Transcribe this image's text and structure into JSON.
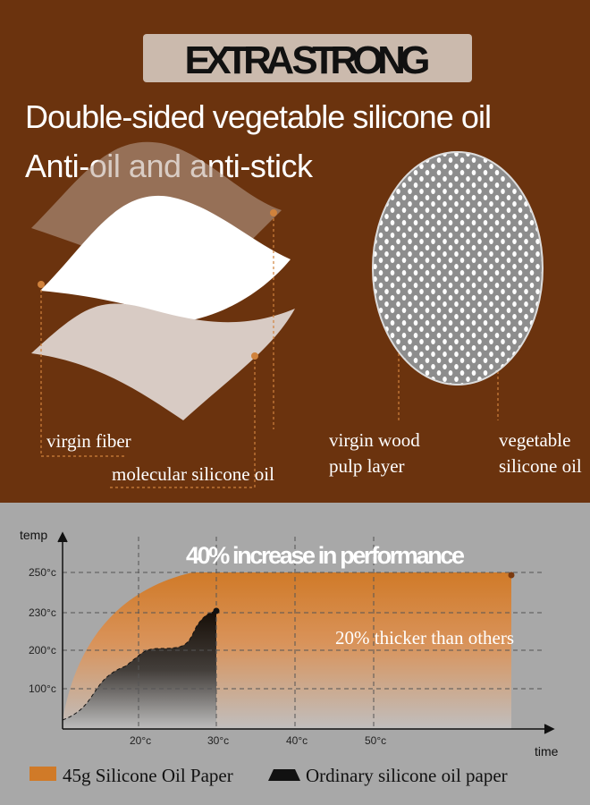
{
  "header": {
    "banner": "EXTRA STRONG",
    "lines": [
      "Double-sided vegetable silicone oil",
      "Anti-oil and anti-stick"
    ]
  },
  "layers": {
    "left_labels": [
      "virgin fiber",
      "molecular silicone oil"
    ],
    "center_label": [
      "virgin wood",
      "pulp layer"
    ],
    "right_label": [
      "vegetable",
      "silicone oil"
    ]
  },
  "performance": {
    "headline": "40% increase in performance",
    "annotation": "20% thicker than others",
    "y_axis_label": "temp",
    "x_axis_label": "time",
    "yticks": [
      "250°c",
      "230°c",
      "200°c",
      "100°c"
    ],
    "xticks": [
      "20°c",
      "30°c",
      "40°c",
      "50°c"
    ],
    "legend": [
      "45g Silicone Oil Paper",
      "Ordinary silicone oil paper"
    ]
  }
}
